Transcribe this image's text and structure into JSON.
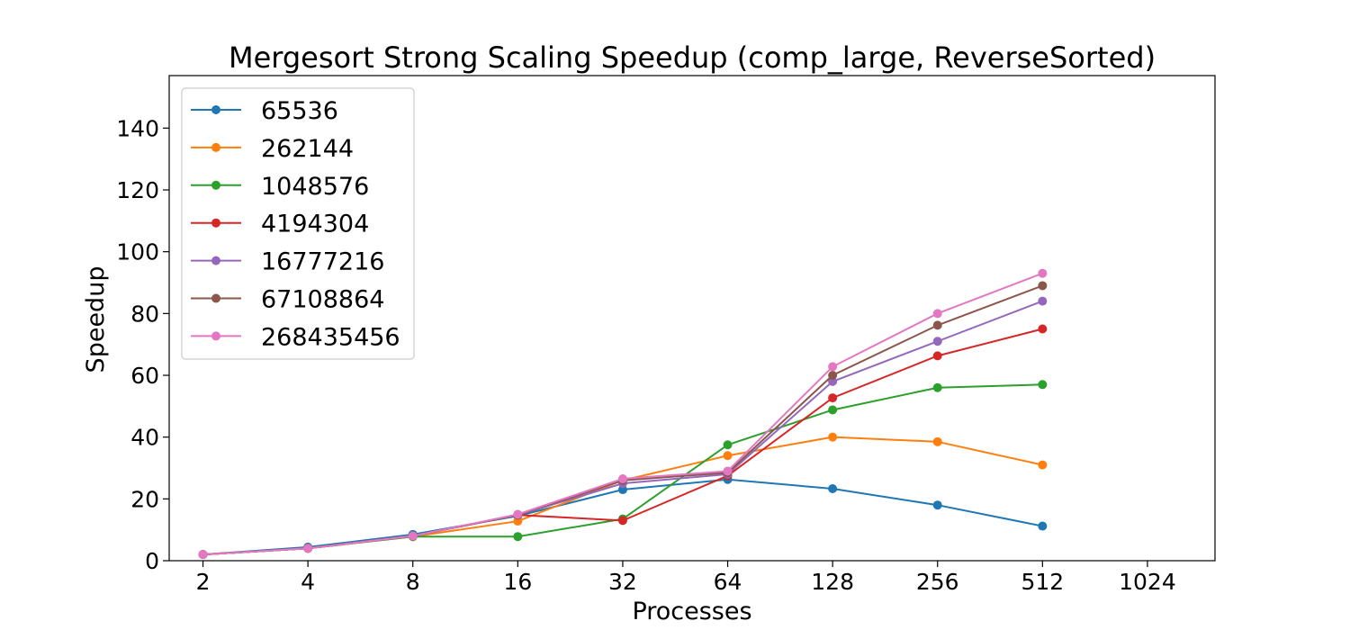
{
  "chart_data": {
    "type": "line",
    "title": "Mergesort Strong Scaling Speedup (comp_large, ReverseSorted)",
    "xlabel": "Processes",
    "ylabel": "Speedup",
    "x_scale": "log2",
    "x": [
      2,
      4,
      8,
      16,
      32,
      64,
      128,
      256,
      512
    ],
    "xticks": [
      2,
      4,
      8,
      16,
      32,
      64,
      128,
      256,
      512,
      1024
    ],
    "xtick_labels": [
      "2",
      "4",
      "8",
      "16",
      "32",
      "64",
      "128",
      "256",
      "512",
      "1024"
    ],
    "xlim": [
      1.6,
      1600
    ],
    "ylim": [
      0,
      157
    ],
    "yticks": [
      0,
      20,
      40,
      60,
      80,
      100,
      120,
      140
    ],
    "ytick_labels": [
      "0",
      "20",
      "40",
      "60",
      "80",
      "100",
      "120",
      "140"
    ],
    "grid": false,
    "legend_position": "top-left",
    "series": [
      {
        "name": "65536",
        "color": "#1f77b4",
        "values": [
          2.0,
          4.4,
          8.5,
          14.5,
          23.0,
          26.3,
          23.3,
          18.0,
          11.2
        ]
      },
      {
        "name": "262144",
        "color": "#ff7f0e",
        "values": [
          2.0,
          4.0,
          7.8,
          12.8,
          26.0,
          34.0,
          40.0,
          38.5,
          31.0
        ]
      },
      {
        "name": "1048576",
        "color": "#2ca02c",
        "values": [
          2.0,
          4.0,
          7.8,
          7.8,
          13.5,
          37.5,
          48.8,
          56.0,
          57.0
        ]
      },
      {
        "name": "4194304",
        "color": "#d62728",
        "values": [
          2.0,
          4.0,
          8.0,
          14.8,
          13.0,
          27.5,
          52.7,
          66.3,
          75.0
        ]
      },
      {
        "name": "16777216",
        "color": "#9467bd",
        "values": [
          2.0,
          4.0,
          8.0,
          14.8,
          25.0,
          28.0,
          58.0,
          71.0,
          84.0
        ]
      },
      {
        "name": "67108864",
        "color": "#8c564b",
        "values": [
          2.0,
          4.0,
          8.0,
          14.8,
          26.0,
          28.5,
          60.0,
          76.2,
          89.0
        ]
      },
      {
        "name": "268435456",
        "color": "#e377c2",
        "values": [
          2.0,
          4.0,
          8.0,
          15.0,
          26.5,
          29.0,
          62.8,
          80.0,
          93.0
        ]
      }
    ]
  }
}
